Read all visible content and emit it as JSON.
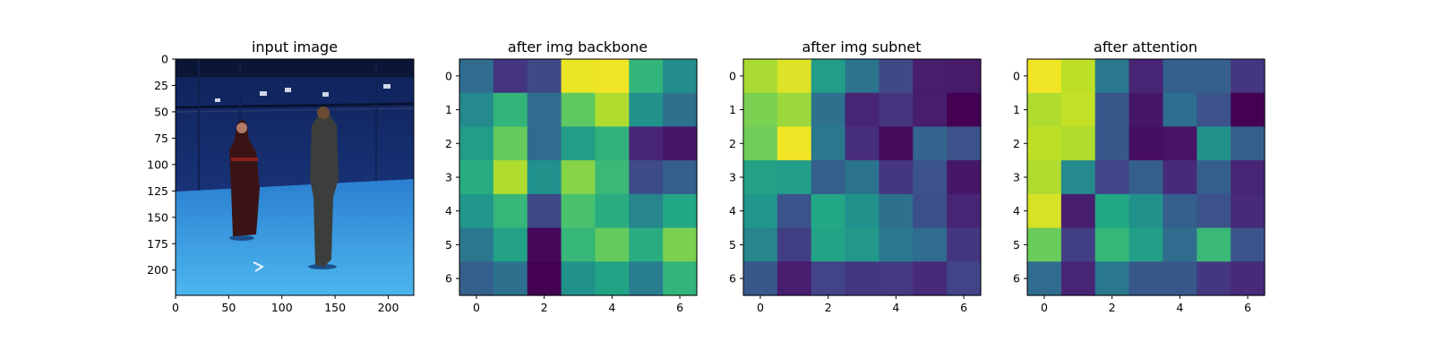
{
  "chart_data": [
    {
      "type": "image",
      "title": "input image",
      "content": "photo of two people standing in a blue-walled motion-capture studio",
      "xticks": [
        0,
        50,
        100,
        150,
        200
      ],
      "yticks": [
        0,
        25,
        50,
        75,
        100,
        125,
        150,
        175,
        200
      ],
      "xlim": [
        0,
        224
      ],
      "ylim": [
        224,
        0
      ],
      "colors": {
        "wall": "#1c3a86",
        "floor": "#3fa6e6",
        "ceiling": "#0d1a40"
      }
    },
    {
      "type": "heatmap",
      "title": "after img backbone",
      "colormap": "viridis",
      "xticks": [
        0,
        2,
        4,
        6
      ],
      "yticks": [
        0,
        1,
        2,
        3,
        4,
        5,
        6
      ],
      "values": [
        [
          0.35,
          0.15,
          0.22,
          0.97,
          0.98,
          0.65,
          0.48
        ],
        [
          0.47,
          0.65,
          0.35,
          0.75,
          0.88,
          0.5,
          0.37
        ],
        [
          0.55,
          0.76,
          0.35,
          0.55,
          0.64,
          0.1,
          0.06
        ],
        [
          0.62,
          0.88,
          0.5,
          0.82,
          0.67,
          0.23,
          0.3
        ],
        [
          0.52,
          0.66,
          0.22,
          0.71,
          0.62,
          0.45,
          0.6
        ],
        [
          0.4,
          0.57,
          0.02,
          0.66,
          0.76,
          0.62,
          0.8
        ],
        [
          0.3,
          0.37,
          0.0,
          0.5,
          0.58,
          0.42,
          0.65
        ]
      ]
    },
    {
      "type": "heatmap",
      "title": "after img subnet",
      "colormap": "viridis",
      "xticks": [
        0,
        2,
        4,
        6
      ],
      "yticks": [
        0,
        1,
        2,
        3,
        4,
        5,
        6
      ],
      "values": [
        [
          0.87,
          0.95,
          0.55,
          0.38,
          0.22,
          0.08,
          0.07
        ],
        [
          0.8,
          0.85,
          0.37,
          0.1,
          0.15,
          0.08,
          0.0
        ],
        [
          0.78,
          0.98,
          0.4,
          0.13,
          0.03,
          0.32,
          0.25
        ],
        [
          0.57,
          0.55,
          0.3,
          0.38,
          0.16,
          0.25,
          0.06
        ],
        [
          0.52,
          0.26,
          0.6,
          0.5,
          0.37,
          0.24,
          0.1
        ],
        [
          0.45,
          0.18,
          0.58,
          0.53,
          0.4,
          0.35,
          0.16
        ],
        [
          0.27,
          0.08,
          0.2,
          0.16,
          0.17,
          0.12,
          0.2
        ]
      ]
    },
    {
      "type": "heatmap",
      "title": "after attention",
      "colormap": "viridis",
      "xticks": [
        0,
        2,
        4,
        6
      ],
      "yticks": [
        0,
        1,
        2,
        3,
        4,
        5,
        6
      ],
      "values": [
        [
          0.98,
          0.9,
          0.4,
          0.1,
          0.3,
          0.3,
          0.16
        ],
        [
          0.88,
          0.91,
          0.27,
          0.06,
          0.36,
          0.25,
          0.0
        ],
        [
          0.9,
          0.88,
          0.27,
          0.04,
          0.05,
          0.5,
          0.3
        ],
        [
          0.88,
          0.47,
          0.2,
          0.3,
          0.12,
          0.3,
          0.1
        ],
        [
          0.94,
          0.08,
          0.6,
          0.5,
          0.3,
          0.25,
          0.12
        ],
        [
          0.77,
          0.18,
          0.66,
          0.56,
          0.35,
          0.67,
          0.26
        ],
        [
          0.35,
          0.1,
          0.4,
          0.27,
          0.27,
          0.16,
          0.12
        ]
      ]
    }
  ]
}
